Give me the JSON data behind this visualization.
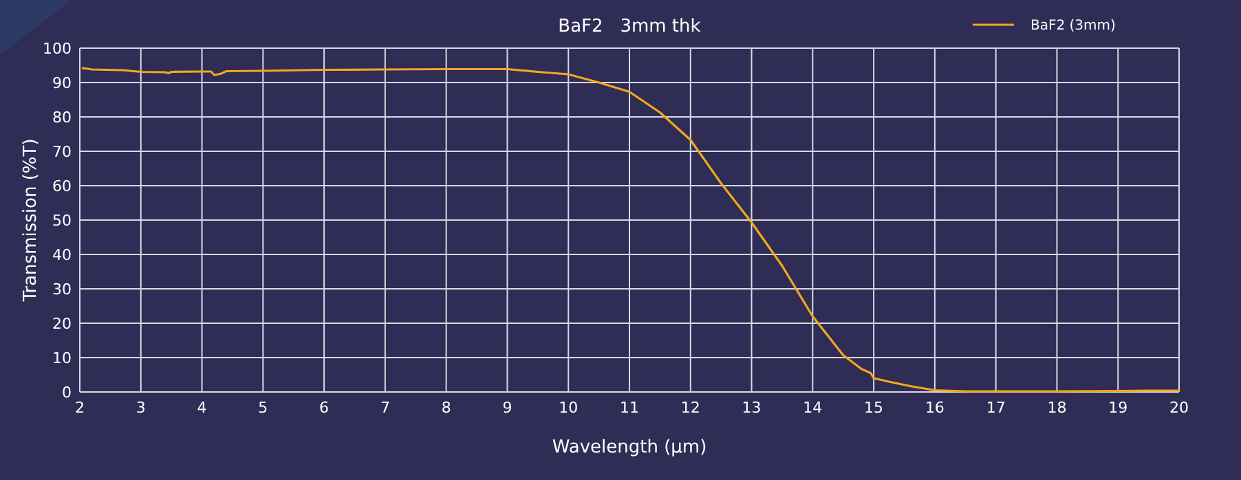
{
  "chart_data": {
    "type": "line",
    "title": "BaF2   3mm thk",
    "xlabel": "Wavelength (µm)",
    "ylabel": "Transmission (%T)",
    "series": [
      {
        "name": "BaF2 (3mm)",
        "color": "#f2a81d",
        "x": [
          2.05,
          2.2,
          2.7,
          3.0,
          3.4,
          3.45,
          3.5,
          4.0,
          4.15,
          4.2,
          4.3,
          4.4,
          5,
          6,
          7,
          8,
          9,
          9.5,
          10,
          10.5,
          11,
          11.5,
          12,
          12.5,
          13,
          13.5,
          14,
          14.5,
          14.8,
          14.95,
          15.0,
          15.3,
          15.6,
          16,
          16.5,
          17,
          18,
          19,
          19.5,
          20
        ],
        "values": [
          94.2,
          93.8,
          93.6,
          93.1,
          93.0,
          92.7,
          93.1,
          93.2,
          93.2,
          92.2,
          92.5,
          93.3,
          93.4,
          93.7,
          93.8,
          93.9,
          93.9,
          93.1,
          92.4,
          90.0,
          87.3,
          81.3,
          73.3,
          60.7,
          49.3,
          36.7,
          22,
          10.7,
          6.7,
          5.5,
          4,
          2.8,
          1.7,
          0.5,
          0.2,
          0.2,
          0.2,
          0.3,
          0.4,
          0.4
        ]
      }
    ],
    "xlim": [
      2,
      20
    ],
    "xticks": [
      2,
      3,
      4,
      5,
      6,
      7,
      8,
      9,
      10,
      11,
      12,
      13,
      14,
      15,
      16,
      17,
      18,
      19,
      20
    ],
    "ylim": [
      0,
      100
    ],
    "yticks": [
      0,
      10,
      20,
      30,
      40,
      50,
      60,
      70,
      80,
      90,
      100
    ],
    "grid": true,
    "legend": "top right",
    "marker": "none",
    "line_style": "solid"
  }
}
